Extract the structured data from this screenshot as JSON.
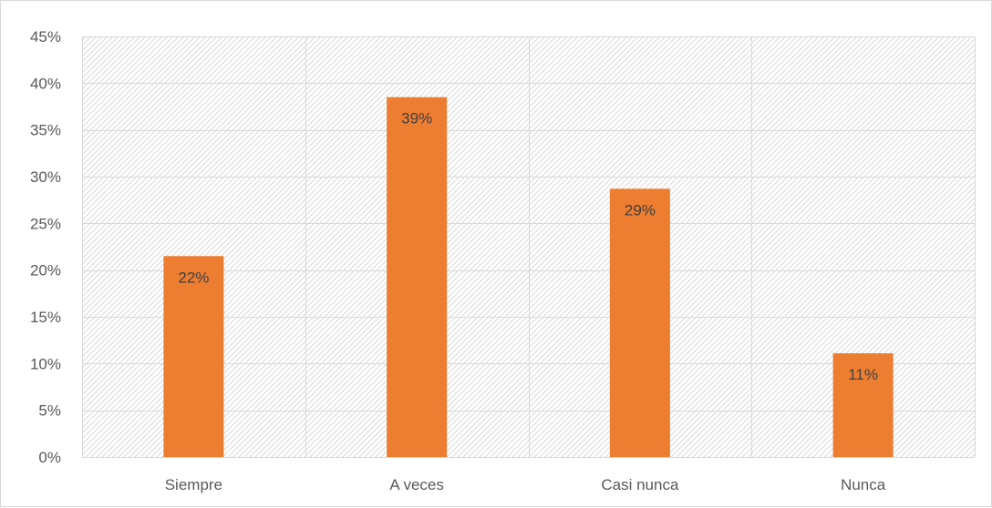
{
  "chart_data": {
    "type": "bar",
    "title": "",
    "xlabel": "",
    "ylabel": "",
    "categories": [
      "Siempre",
      "A veces",
      "Casi nunca",
      "Nunca"
    ],
    "values": [
      21.5,
      38.5,
      28.7,
      11.1
    ],
    "data_labels": [
      "22%",
      "39%",
      "29%",
      "11%"
    ],
    "ylim": [
      0,
      45
    ],
    "y_ticks": [
      0,
      5,
      10,
      15,
      20,
      25,
      30,
      35,
      40,
      45
    ],
    "y_tick_labels": [
      "0%",
      "5%",
      "10%",
      "15%",
      "20%",
      "25%",
      "30%",
      "35%",
      "40%",
      "45%"
    ],
    "grid": true,
    "vertical_gridlines": true,
    "plot_background": "diagonal-hatch",
    "legend": "none",
    "colors": {
      "bar": "#ed7d31",
      "grid": "#d9d9d9",
      "hatch": "#d9d9d9",
      "axis_text": "#595959",
      "data_label": "#404040"
    }
  }
}
